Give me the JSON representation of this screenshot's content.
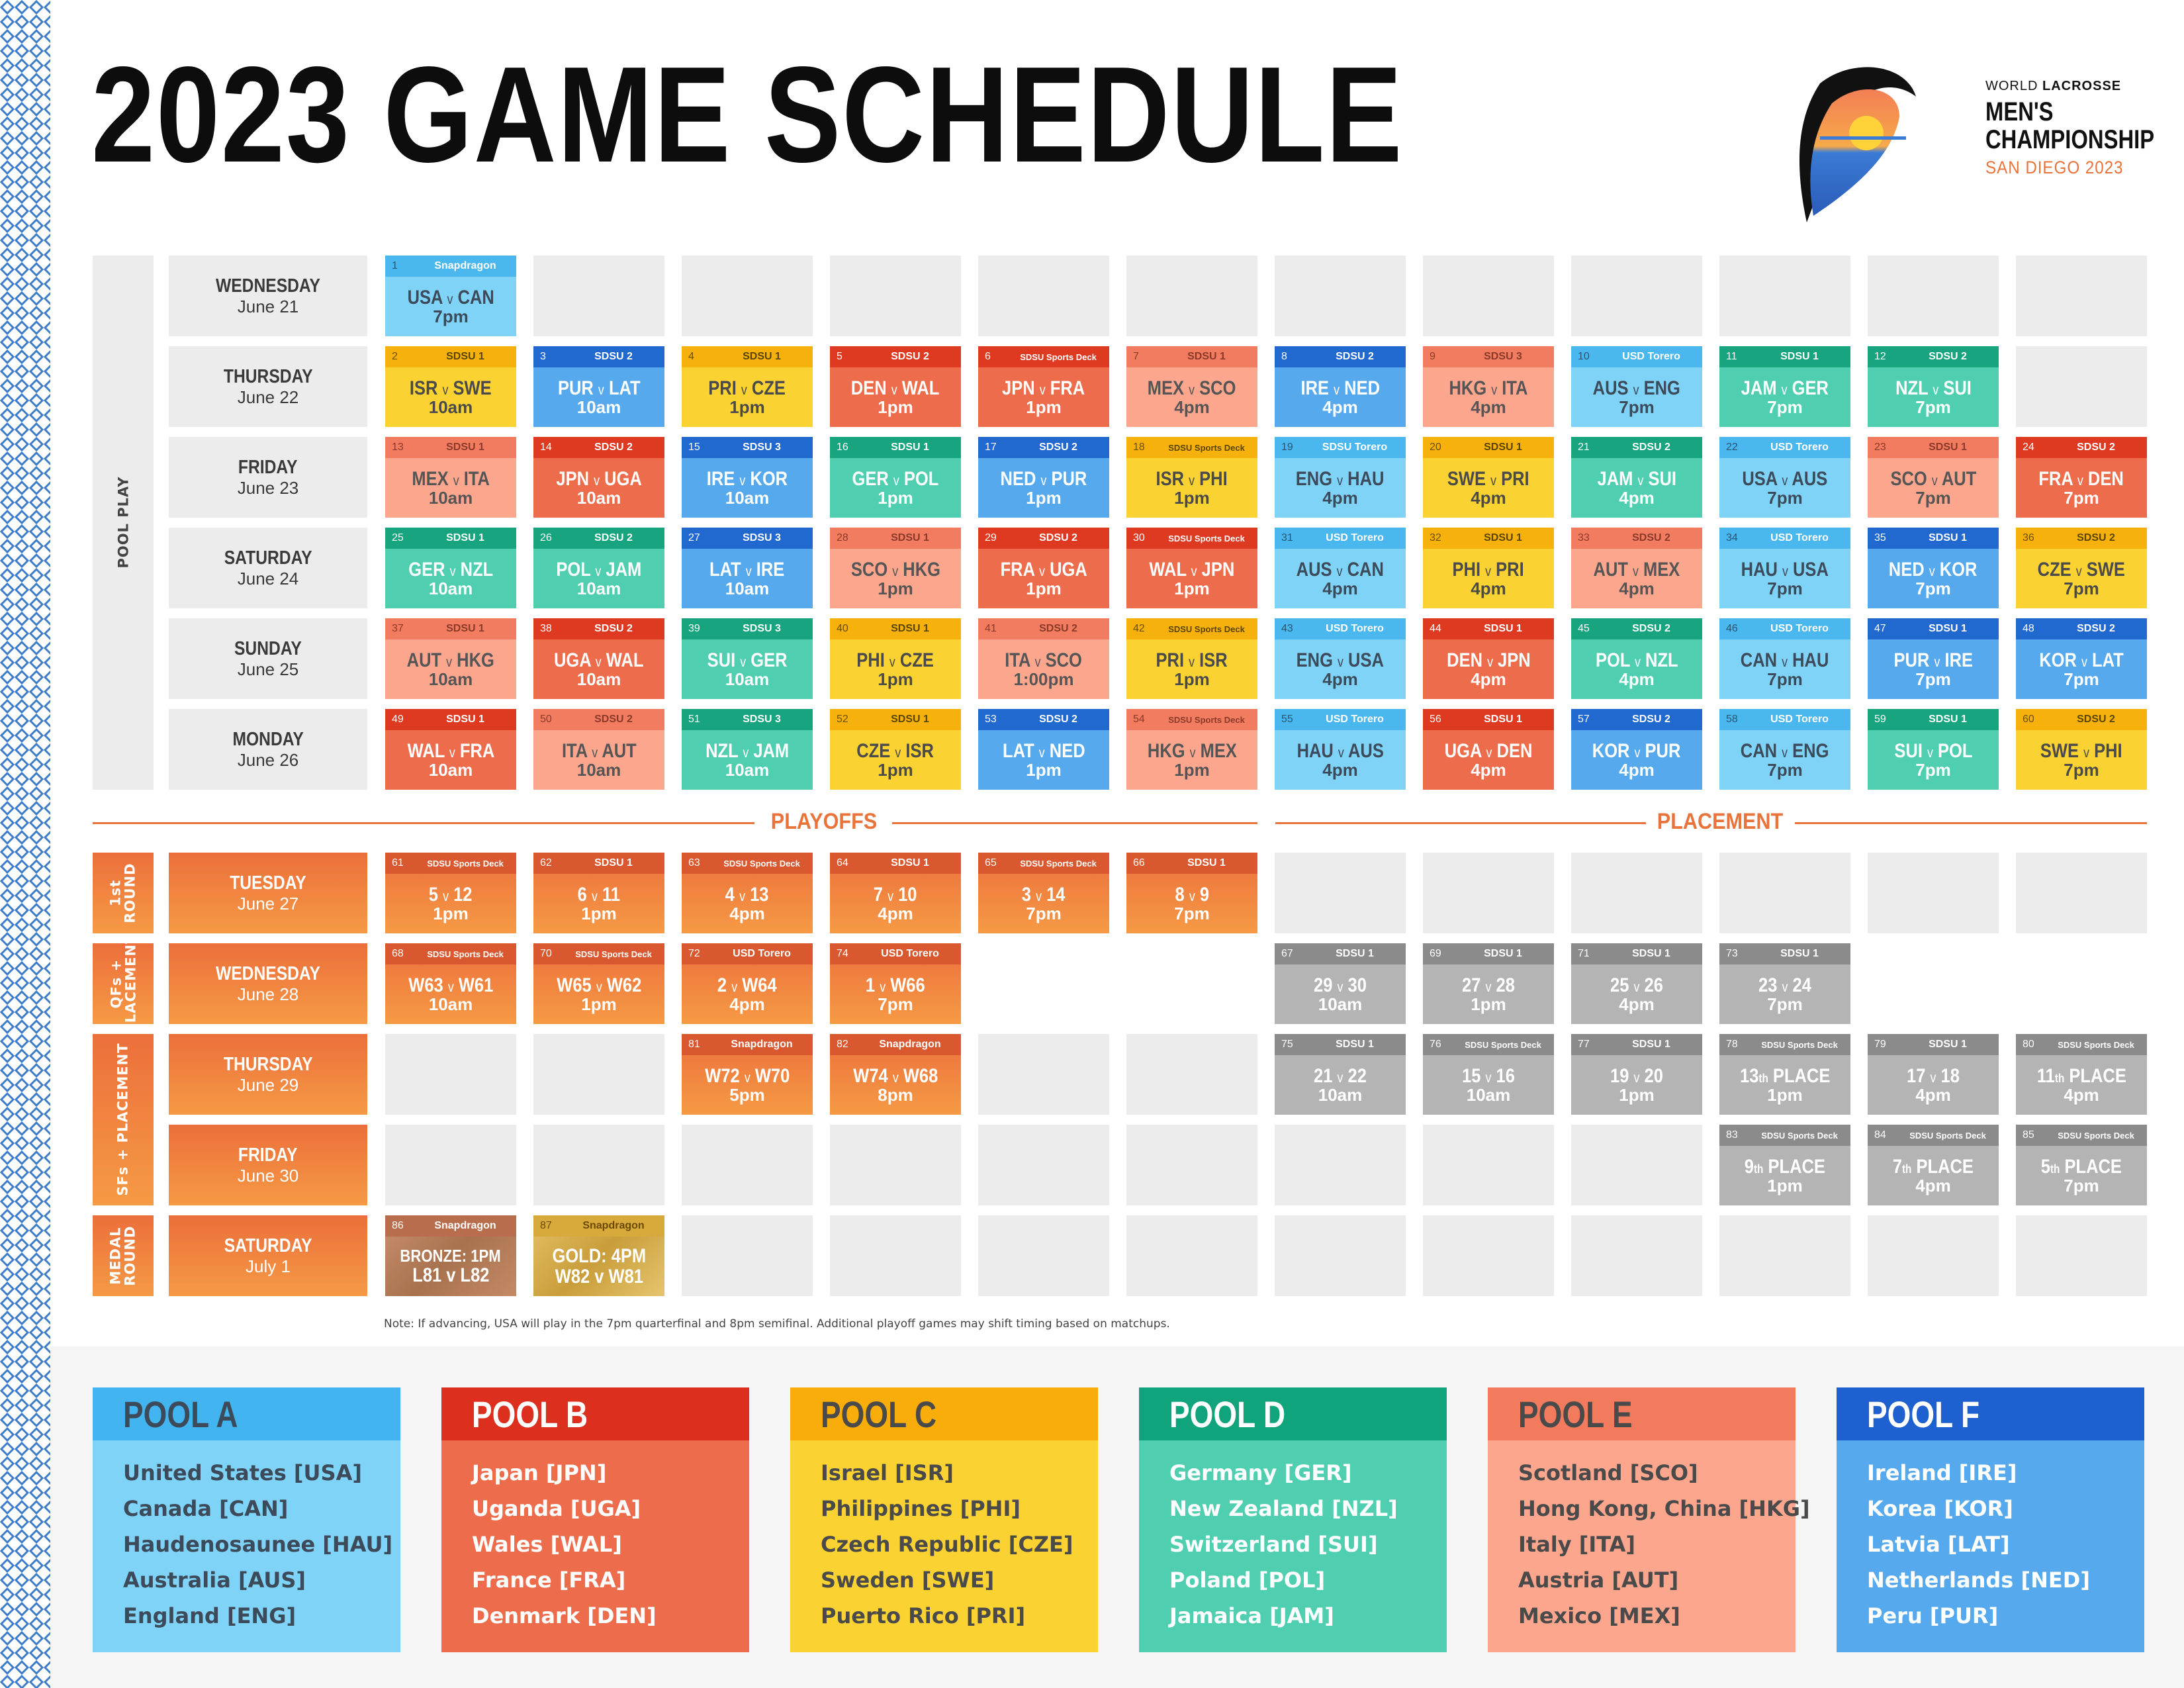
{
  "title": "2023 GAME SCHEDULE",
  "logo": {
    "line1_a": "WORLD ",
    "line1_b": "LACROSSE",
    "line2": "MEN'S",
    "line3": "CHAMPIONSHIP",
    "line4": "SAN DIEGO 2023"
  },
  "colors": {
    "orange": "#ec6e3a",
    "gray": "#b4b4b4",
    "empty": "#ececec",
    "pool_a": "#7fd3f7",
    "pool_b": "#ec6c4c",
    "pool_c": "#fad232",
    "pool_d": "#4fcfb0",
    "pool_e": "#fca68e",
    "pool_f": "#56a9ec"
  },
  "pool_play_label": "POOL PLAY",
  "playoffs_label": "PLAYOFFS",
  "placement_label": "PLACEMENT",
  "pool_days": [
    {
      "name": "WEDNESDAY",
      "date": "June 21"
    },
    {
      "name": "THURSDAY",
      "date": "June 22"
    },
    {
      "name": "FRIDAY",
      "date": "June 23"
    },
    {
      "name": "SATURDAY",
      "date": "June 24"
    },
    {
      "name": "SUNDAY",
      "date": "June 25"
    },
    {
      "name": "MONDAY",
      "date": "June 26"
    }
  ],
  "playoff_days": [
    {
      "name": "TUESDAY",
      "date": "June 27"
    },
    {
      "name": "WEDNESDAY",
      "date": "June 28"
    },
    {
      "name": "THURSDAY",
      "date": "June 29"
    },
    {
      "name": "FRIDAY",
      "date": "June 30"
    },
    {
      "name": "SATURDAY",
      "date": "July 1"
    }
  ],
  "round_labels": [
    {
      "text": "1st\nROUND"
    },
    {
      "text": "QFs +\nPLACEMENT"
    },
    {
      "text": "SFs + PLACEMENT"
    },
    {
      "text": "MEDAL\nROUND"
    }
  ],
  "pool_games": [
    [
      {
        "n": "1",
        "v": "Snapdragon",
        "m": "USA v CAN",
        "t": "7pm",
        "p": "a"
      },
      null,
      null,
      null,
      null,
      null,
      null,
      null,
      null,
      null,
      null,
      null
    ],
    [
      {
        "n": "2",
        "v": "SDSU 1",
        "m": "ISR v SWE",
        "t": "10am",
        "p": "c"
      },
      {
        "n": "3",
        "v": "SDSU 2",
        "m": "PUR v LAT",
        "t": "10am",
        "p": "f"
      },
      {
        "n": "4",
        "v": "SDSU 1",
        "m": "PRI v CZE",
        "t": "1pm",
        "p": "c"
      },
      {
        "n": "5",
        "v": "SDSU 2",
        "m": "DEN v WAL",
        "t": "1pm",
        "p": "b"
      },
      {
        "n": "6",
        "v": "SDSU Sports Deck",
        "m": "JPN v FRA",
        "t": "1pm",
        "p": "b"
      },
      {
        "n": "7",
        "v": "SDSU 1",
        "m": "MEX v SCO",
        "t": "4pm",
        "p": "e"
      },
      {
        "n": "8",
        "v": "SDSU 2",
        "m": "IRE v NED",
        "t": "4pm",
        "p": "f"
      },
      {
        "n": "9",
        "v": "SDSU 3",
        "m": "HKG v ITA",
        "t": "4pm",
        "p": "e"
      },
      {
        "n": "10",
        "v": "USD Torero",
        "m": "AUS v ENG",
        "t": "7pm",
        "p": "a"
      },
      {
        "n": "11",
        "v": "SDSU 1",
        "m": "JAM v GER",
        "t": "7pm",
        "p": "d"
      },
      {
        "n": "12",
        "v": "SDSU 2",
        "m": "NZL v SUI",
        "t": "7pm",
        "p": "d"
      },
      null
    ],
    [
      {
        "n": "13",
        "v": "SDSU 1",
        "m": "MEX v ITA",
        "t": "10am",
        "p": "e"
      },
      {
        "n": "14",
        "v": "SDSU 2",
        "m": "JPN v UGA",
        "t": "10am",
        "p": "b"
      },
      {
        "n": "15",
        "v": "SDSU 3",
        "m": "IRE v KOR",
        "t": "10am",
        "p": "f"
      },
      {
        "n": "16",
        "v": "SDSU 1",
        "m": "GER v POL",
        "t": "1pm",
        "p": "d"
      },
      {
        "n": "17",
        "v": "SDSU 2",
        "m": "NED v PUR",
        "t": "1pm",
        "p": "f"
      },
      {
        "n": "18",
        "v": "SDSU Sports Deck",
        "m": "ISR v PHI",
        "t": "1pm",
        "p": "c"
      },
      {
        "n": "19",
        "v": "SDSU Torero",
        "m": "ENG v HAU",
        "t": "4pm",
        "p": "a"
      },
      {
        "n": "20",
        "v": "SDSU 1",
        "m": "SWE v PRI",
        "t": "4pm",
        "p": "c"
      },
      {
        "n": "21",
        "v": "SDSU 2",
        "m": "JAM v SUI",
        "t": "4pm",
        "p": "d"
      },
      {
        "n": "22",
        "v": "USD Torero",
        "m": "USA v AUS",
        "t": "7pm",
        "p": "a"
      },
      {
        "n": "23",
        "v": "SDSU 1",
        "m": "SCO v AUT",
        "t": "7pm",
        "p": "e"
      },
      {
        "n": "24",
        "v": "SDSU 2",
        "m": "FRA v DEN",
        "t": "7pm",
        "p": "b"
      }
    ],
    [
      {
        "n": "25",
        "v": "SDSU 1",
        "m": "GER v NZL",
        "t": "10am",
        "p": "d"
      },
      {
        "n": "26",
        "v": "SDSU 2",
        "m": "POL v JAM",
        "t": "10am",
        "p": "d"
      },
      {
        "n": "27",
        "v": "SDSU 3",
        "m": "LAT v IRE",
        "t": "10am",
        "p": "f"
      },
      {
        "n": "28",
        "v": "SDSU 1",
        "m": "SCO v HKG",
        "t": "1pm",
        "p": "e"
      },
      {
        "n": "29",
        "v": "SDSU 2",
        "m": "FRA v UGA",
        "t": "1pm",
        "p": "b"
      },
      {
        "n": "30",
        "v": "SDSU Sports Deck",
        "m": "WAL v JPN",
        "t": "1pm",
        "p": "b"
      },
      {
        "n": "31",
        "v": "USD Torero",
        "m": "AUS v CAN",
        "t": "4pm",
        "p": "a"
      },
      {
        "n": "32",
        "v": "SDSU 1",
        "m": "PHI v PRI",
        "t": "4pm",
        "p": "c"
      },
      {
        "n": "33",
        "v": "SDSU 2",
        "m": "AUT v MEX",
        "t": "4pm",
        "p": "e"
      },
      {
        "n": "34",
        "v": "USD Torero",
        "m": "HAU v USA",
        "t": "7pm",
        "p": "a"
      },
      {
        "n": "35",
        "v": "SDSU 1",
        "m": "NED v KOR",
        "t": "7pm",
        "p": "f"
      },
      {
        "n": "36",
        "v": "SDSU 2",
        "m": "CZE v SWE",
        "t": "7pm",
        "p": "c"
      }
    ],
    [
      {
        "n": "37",
        "v": "SDSU 1",
        "m": "AUT v HKG",
        "t": "10am",
        "p": "e"
      },
      {
        "n": "38",
        "v": "SDSU 2",
        "m": "UGA v WAL",
        "t": "10am",
        "p": "b"
      },
      {
        "n": "39",
        "v": "SDSU 3",
        "m": "SUI v GER",
        "t": "10am",
        "p": "d"
      },
      {
        "n": "40",
        "v": "SDSU 1",
        "m": "PHI v CZE",
        "t": "1pm",
        "p": "c"
      },
      {
        "n": "41",
        "v": "SDSU 2",
        "m": "ITA v SCO",
        "t": "1:00pm",
        "p": "e"
      },
      {
        "n": "42",
        "v": "SDSU Sports Deck",
        "m": "PRI v ISR",
        "t": "1pm",
        "p": "c"
      },
      {
        "n": "43",
        "v": "USD Torero",
        "m": "ENG v USA",
        "t": "4pm",
        "p": "a"
      },
      {
        "n": "44",
        "v": "SDSU 1",
        "m": "DEN v JPN",
        "t": "4pm",
        "p": "b"
      },
      {
        "n": "45",
        "v": "SDSU 2",
        "m": "POL v NZL",
        "t": "4pm",
        "p": "d"
      },
      {
        "n": "46",
        "v": "USD Torero",
        "m": "CAN v HAU",
        "t": "7pm",
        "p": "a"
      },
      {
        "n": "47",
        "v": "SDSU 1",
        "m": "PUR v IRE",
        "t": "7pm",
        "p": "f"
      },
      {
        "n": "48",
        "v": "SDSU 2",
        "m": "KOR v LAT",
        "t": "7pm",
        "p": "f"
      }
    ],
    [
      {
        "n": "49",
        "v": "SDSU 1",
        "m": "WAL v FRA",
        "t": "10am",
        "p": "b"
      },
      {
        "n": "50",
        "v": "SDSU 2",
        "m": "ITA v AUT",
        "t": "10am",
        "p": "e"
      },
      {
        "n": "51",
        "v": "SDSU 3",
        "m": "NZL v JAM",
        "t": "10am",
        "p": "d"
      },
      {
        "n": "52",
        "v": "SDSU 1",
        "m": "CZE v ISR",
        "t": "1pm",
        "p": "c"
      },
      {
        "n": "53",
        "v": "SDSU 2",
        "m": "LAT v NED",
        "t": "1pm",
        "p": "f"
      },
      {
        "n": "54",
        "v": "SDSU Sports Deck",
        "m": "HKG v MEX",
        "t": "1pm",
        "p": "e"
      },
      {
        "n": "55",
        "v": "USD Torero",
        "m": "HAU v AUS",
        "t": "4pm",
        "p": "a"
      },
      {
        "n": "56",
        "v": "SDSU 1",
        "m": "UGA v DEN",
        "t": "4pm",
        "p": "b"
      },
      {
        "n": "57",
        "v": "SDSU 2",
        "m": "KOR v PUR",
        "t": "4pm",
        "p": "f"
      },
      {
        "n": "58",
        "v": "USD Torero",
        "m": "CAN v ENG",
        "t": "7pm",
        "p": "a"
      },
      {
        "n": "59",
        "v": "SDSU 1",
        "m": "SUI v POL",
        "t": "7pm",
        "p": "d"
      },
      {
        "n": "60",
        "v": "SDSU 2",
        "m": "SWE v PHI",
        "t": "7pm",
        "p": "c"
      }
    ]
  ],
  "playoff_games": [
    [
      {
        "n": "61",
        "v": "SDSU Sports Deck",
        "m": "5 v 12",
        "t": "1pm",
        "p": "o"
      },
      {
        "n": "62",
        "v": "SDSU 1",
        "m": "6 v 11",
        "t": "1pm",
        "p": "o"
      },
      {
        "n": "63",
        "v": "SDSU Sports Deck",
        "m": "4 v 13",
        "t": "4pm",
        "p": "o"
      },
      {
        "n": "64",
        "v": "SDSU 1",
        "m": "7 v 10",
        "t": "4pm",
        "p": "o"
      },
      {
        "n": "65",
        "v": "SDSU Sports Deck",
        "m": "3 v 14",
        "t": "7pm",
        "p": "o"
      },
      {
        "n": "66",
        "v": "SDSU 1",
        "m": "8 v 9",
        "t": "7pm",
        "p": "o"
      },
      null,
      null,
      null,
      null,
      null,
      null
    ],
    [
      {
        "n": "68",
        "v": "SDSU Sports Deck",
        "m": "W63 v W61",
        "t": "10am",
        "p": "o"
      },
      {
        "n": "70",
        "v": "SDSU Sports Deck",
        "m": "W65 v W62",
        "t": "1pm",
        "p": "o"
      },
      {
        "n": "72",
        "v": "USD Torero",
        "m": "2 v W64",
        "t": "4pm",
        "p": "o"
      },
      {
        "n": "74",
        "v": "USD Torero",
        "m": "1 v W66",
        "t": "7pm",
        "p": "o"
      },
      "blank",
      "blank",
      {
        "n": "67",
        "v": "SDSU 1",
        "m": "29 v 30",
        "t": "10am",
        "p": "g"
      },
      {
        "n": "69",
        "v": "SDSU 1",
        "m": "27 v 28",
        "t": "1pm",
        "p": "g"
      },
      {
        "n": "71",
        "v": "SDSU 1",
        "m": "25 v 26",
        "t": "4pm",
        "p": "g"
      },
      {
        "n": "73",
        "v": "SDSU 1",
        "m": "23 v 24",
        "t": "7pm",
        "p": "g"
      },
      "blank",
      "blank"
    ],
    [
      null,
      null,
      {
        "n": "81",
        "v": "Snapdragon",
        "m": "W72 v W70",
        "t": "5pm",
        "p": "o"
      },
      {
        "n": "82",
        "v": "Snapdragon",
        "m": "W74 v W68",
        "t": "8pm",
        "p": "o"
      },
      null,
      null,
      {
        "n": "75",
        "v": "SDSU 1",
        "m": "21 v 22",
        "t": "10am",
        "p": "g"
      },
      {
        "n": "76",
        "v": "SDSU Sports Deck",
        "m": "15 v 16",
        "t": "10am",
        "p": "g"
      },
      {
        "n": "77",
        "v": "SDSU 1",
        "m": "19 v 20",
        "t": "1pm",
        "p": "g"
      },
      {
        "n": "78",
        "v": "SDSU Sports Deck",
        "m": "13th PLACE",
        "t": "1pm",
        "p": "g"
      },
      {
        "n": "79",
        "v": "SDSU 1",
        "m": "17 v 18",
        "t": "4pm",
        "p": "g"
      },
      {
        "n": "80",
        "v": "SDSU Sports Deck",
        "m": "11th PLACE",
        "t": "4pm",
        "p": "g"
      }
    ],
    [
      null,
      null,
      null,
      null,
      null,
      null,
      null,
      null,
      null,
      {
        "n": "83",
        "v": "SDSU Sports Deck",
        "m": "9th PLACE",
        "t": "1pm",
        "p": "g"
      },
      {
        "n": "84",
        "v": "SDSU Sports Deck",
        "m": "7th PLACE",
        "t": "4pm",
        "p": "g"
      },
      {
        "n": "85",
        "v": "SDSU Sports Deck",
        "m": "5th PLACE",
        "t": "7pm",
        "p": "g"
      }
    ],
    [
      {
        "n": "86",
        "v": "Snapdragon",
        "m": "BRONZE: 1PM",
        "t": "L81 v L82",
        "p": "bronze"
      },
      {
        "n": "87",
        "v": "Snapdragon",
        "m": "GOLD: 4PM",
        "t": "W82 v W81",
        "p": "gold"
      },
      null,
      null,
      null,
      null,
      null,
      null,
      null,
      null,
      null,
      null
    ]
  ],
  "note": "Note: If advancing, USA will play in the 7pm quarterfinal and 8pm semifinal. Additional playoff games may shift timing based on matchups.",
  "pools": [
    {
      "key": "a",
      "title": "POOL A",
      "teams": [
        "United States [USA]",
        "Canada [CAN]",
        "Haudenosaunee [HAU]",
        "Australia [AUS]",
        "England [ENG]"
      ]
    },
    {
      "key": "b",
      "title": "POOL B",
      "teams": [
        "Japan [JPN]",
        "Uganda [UGA]",
        "Wales [WAL]",
        "France [FRA]",
        "Denmark [DEN]"
      ]
    },
    {
      "key": "c",
      "title": "POOL C",
      "teams": [
        "Israel [ISR]",
        "Philippines [PHI]",
        "Czech Republic [CZE]",
        "Sweden [SWE]",
        "Puerto Rico [PRI]"
      ]
    },
    {
      "key": "d",
      "title": "POOL D",
      "teams": [
        "Germany [GER]",
        "New Zealand [NZL]",
        "Switzerland [SUI]",
        "Poland [POL]",
        "Jamaica [JAM]"
      ]
    },
    {
      "key": "e",
      "title": "POOL E",
      "teams": [
        "Scotland [SCO]",
        "Hong Kong, China [HKG]",
        "Italy [ITA]",
        "Austria [AUT]",
        "Mexico [MEX]"
      ]
    },
    {
      "key": "f",
      "title": "POOL F",
      "teams": [
        "Ireland [IRE]",
        "Korea [KOR]",
        "Latvia [LAT]",
        "Netherlands [NED]",
        "Peru [PUR]"
      ]
    }
  ]
}
